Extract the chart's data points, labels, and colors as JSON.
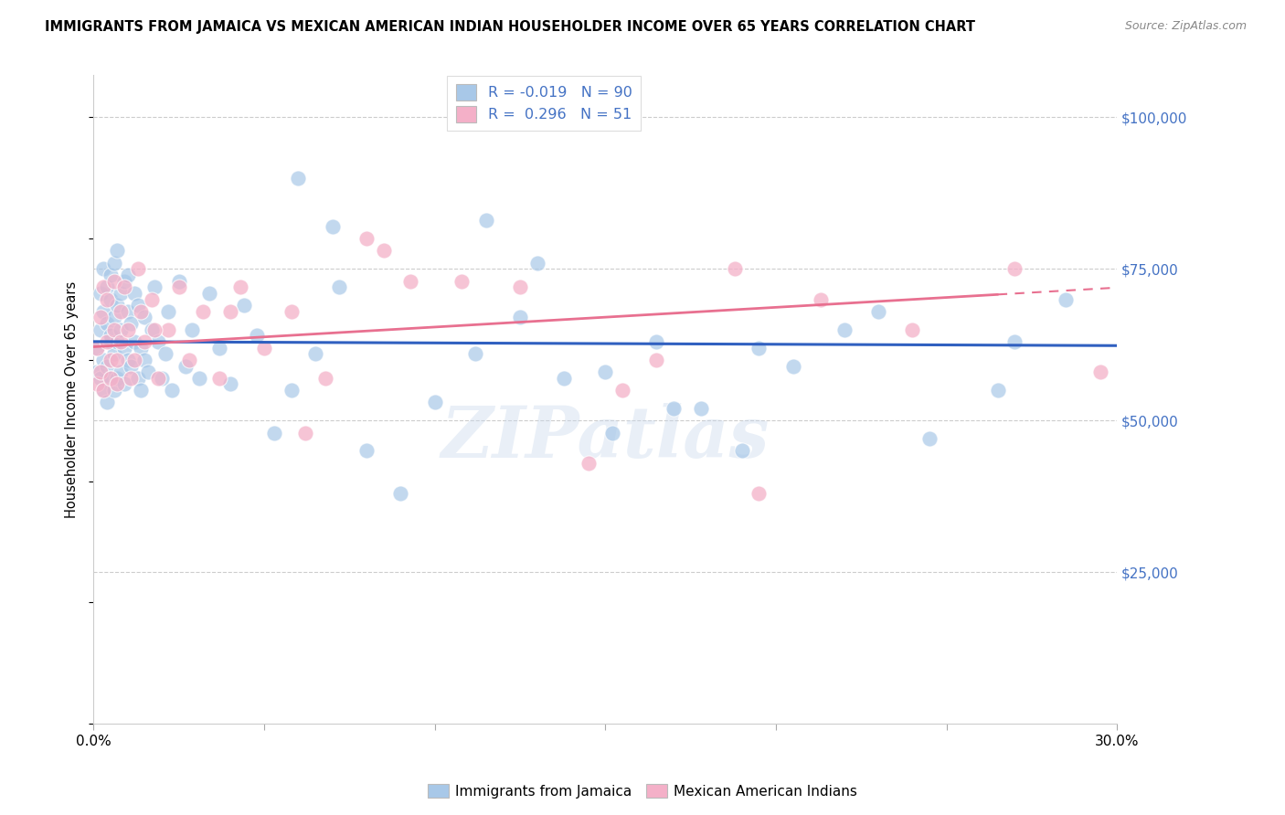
{
  "title": "IMMIGRANTS FROM JAMAICA VS MEXICAN AMERICAN INDIAN HOUSEHOLDER INCOME OVER 65 YEARS CORRELATION CHART",
  "source": "Source: ZipAtlas.com",
  "ylabel": "Householder Income Over 65 years",
  "y_tick_labels": [
    "",
    "$25,000",
    "$50,000",
    "$75,000",
    "$100,000"
  ],
  "y_tick_values": [
    0,
    25000,
    50000,
    75000,
    100000
  ],
  "legend_labels_bottom": [
    "Immigrants from Jamaica",
    "Mexican American Indians"
  ],
  "r_jamaica": -0.019,
  "n_jamaica": 90,
  "r_mexican": 0.296,
  "n_mexican": 51,
  "jamaica_color": "#a8c8e8",
  "mexican_color": "#f4b0c8",
  "jamaica_line_color": "#3060c0",
  "mexican_line_color": "#e87090",
  "watermark": "ZIPatlas",
  "jamaica_points_x": [
    0.001,
    0.001,
    0.002,
    0.002,
    0.002,
    0.003,
    0.003,
    0.003,
    0.003,
    0.004,
    0.004,
    0.004,
    0.004,
    0.005,
    0.005,
    0.005,
    0.005,
    0.005,
    0.006,
    0.006,
    0.006,
    0.006,
    0.007,
    0.007,
    0.007,
    0.007,
    0.008,
    0.008,
    0.008,
    0.009,
    0.009,
    0.009,
    0.01,
    0.01,
    0.01,
    0.011,
    0.011,
    0.012,
    0.012,
    0.013,
    0.013,
    0.014,
    0.014,
    0.015,
    0.015,
    0.016,
    0.017,
    0.018,
    0.019,
    0.02,
    0.021,
    0.022,
    0.023,
    0.025,
    0.027,
    0.029,
    0.031,
    0.034,
    0.037,
    0.04,
    0.044,
    0.048,
    0.053,
    0.058,
    0.065,
    0.072,
    0.08,
    0.09,
    0.1,
    0.112,
    0.125,
    0.138,
    0.152,
    0.165,
    0.178,
    0.19,
    0.205,
    0.22,
    0.245,
    0.265,
    0.115,
    0.13,
    0.15,
    0.17,
    0.06,
    0.07,
    0.195,
    0.23,
    0.27,
    0.285
  ],
  "jamaica_points_y": [
    58000,
    62000,
    71000,
    65000,
    57000,
    75000,
    68000,
    60000,
    55000,
    72000,
    66000,
    59000,
    53000,
    74000,
    63000,
    57000,
    70000,
    64000,
    76000,
    67000,
    61000,
    55000,
    78000,
    69000,
    63000,
    57000,
    65000,
    71000,
    58000,
    73000,
    62000,
    56000,
    68000,
    74000,
    60000,
    66000,
    59000,
    71000,
    63000,
    57000,
    69000,
    62000,
    55000,
    67000,
    60000,
    58000,
    65000,
    72000,
    63000,
    57000,
    61000,
    68000,
    55000,
    73000,
    59000,
    65000,
    57000,
    71000,
    62000,
    56000,
    69000,
    64000,
    48000,
    55000,
    61000,
    72000,
    45000,
    38000,
    53000,
    61000,
    67000,
    57000,
    48000,
    63000,
    52000,
    45000,
    59000,
    65000,
    47000,
    55000,
    83000,
    76000,
    58000,
    52000,
    90000,
    82000,
    62000,
    68000,
    63000,
    70000
  ],
  "mexican_points_x": [
    0.001,
    0.001,
    0.002,
    0.002,
    0.003,
    0.003,
    0.004,
    0.004,
    0.005,
    0.005,
    0.006,
    0.006,
    0.007,
    0.007,
    0.008,
    0.008,
    0.009,
    0.01,
    0.011,
    0.012,
    0.013,
    0.014,
    0.015,
    0.017,
    0.019,
    0.022,
    0.025,
    0.028,
    0.032,
    0.037,
    0.043,
    0.05,
    0.058,
    0.068,
    0.08,
    0.093,
    0.108,
    0.125,
    0.145,
    0.165,
    0.188,
    0.213,
    0.24,
    0.27,
    0.295,
    0.195,
    0.155,
    0.085,
    0.062,
    0.04,
    0.018
  ],
  "mexican_points_y": [
    56000,
    62000,
    58000,
    67000,
    72000,
    55000,
    63000,
    70000,
    60000,
    57000,
    65000,
    73000,
    60000,
    56000,
    68000,
    63000,
    72000,
    65000,
    57000,
    60000,
    75000,
    68000,
    63000,
    70000,
    57000,
    65000,
    72000,
    60000,
    68000,
    57000,
    72000,
    62000,
    68000,
    57000,
    80000,
    73000,
    73000,
    72000,
    43000,
    60000,
    75000,
    70000,
    65000,
    75000,
    58000,
    38000,
    55000,
    78000,
    48000,
    68000,
    65000
  ]
}
